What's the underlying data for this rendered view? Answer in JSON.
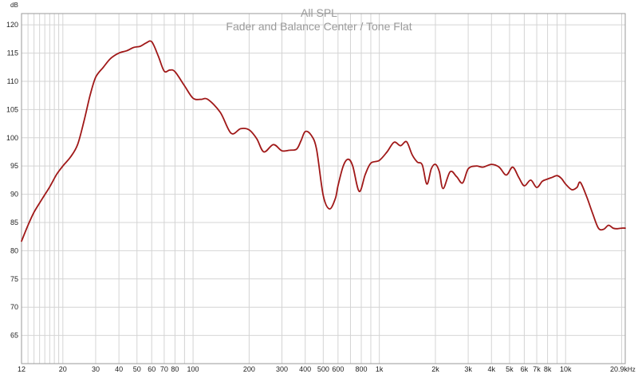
{
  "chart_data": {
    "type": "line",
    "title": "All SPL",
    "subtitle": "Fader and Balance Center / Tone Flat",
    "ylabel": "dB",
    "xlabel": "",
    "x_unit": "Hz",
    "x_scale": "log",
    "xlim": [
      12,
      20900
    ],
    "ylim": [
      60,
      122
    ],
    "grid": true,
    "legend": "none",
    "line_color": "#a01818",
    "y_ticks": [
      65,
      70,
      75,
      80,
      85,
      90,
      95,
      100,
      105,
      110,
      115,
      120
    ],
    "y_tick_labels": [
      "65",
      "70",
      "75",
      "80",
      "85",
      "90",
      "95",
      "100",
      "105",
      "110",
      "115",
      "120"
    ],
    "x_ticks": [
      12,
      20,
      30,
      40,
      50,
      60,
      70,
      80,
      100,
      200,
      300,
      400,
      500,
      600,
      800,
      1000,
      2000,
      3000,
      4000,
      5000,
      6000,
      7000,
      8000,
      10000,
      20900
    ],
    "x_tick_labels": [
      "12",
      "20",
      "30",
      "40",
      "50",
      "60",
      "70",
      "80",
      "100",
      "200",
      "300",
      "400",
      "500",
      "600",
      "800",
      "1k",
      "2k",
      "3k",
      "4k",
      "5k",
      "6k",
      "7k",
      "8k",
      "10k",
      "20.9k"
    ],
    "x_minor_gridlines": [
      12,
      13,
      14,
      15,
      16,
      17,
      18,
      19,
      20,
      30,
      40,
      50,
      60,
      70,
      80,
      90,
      100,
      200,
      300,
      400,
      500,
      600,
      700,
      800,
      900,
      1000,
      2000,
      3000,
      4000,
      5000,
      6000,
      7000,
      8000,
      9000,
      10000,
      20000
    ],
    "series": [
      {
        "x": [
          12,
          13,
          14,
          15.5,
          17,
          18.5,
          20,
          22,
          24,
          26,
          28,
          30,
          33,
          36,
          40,
          44,
          48,
          52,
          56,
          60,
          65,
          70,
          75,
          80,
          90,
          100,
          110,
          120,
          140,
          160,
          180,
          200,
          220,
          240,
          270,
          300,
          330,
          360,
          380,
          400,
          430,
          460,
          500,
          540,
          580,
          600,
          640,
          680,
          720,
          780,
          840,
          900,
          1000,
          1100,
          1200,
          1300,
          1400,
          1500,
          1600,
          1700,
          1800,
          1900,
          2000,
          2100,
          2200,
          2400,
          2600,
          2800,
          3000,
          3300,
          3600,
          4000,
          4400,
          4800,
          5200,
          5600,
          6000,
          6500,
          7000,
          7500,
          8000,
          8500,
          9000,
          9500,
          10000,
          10800,
          11500,
          12000,
          13000,
          14000,
          15000,
          16000,
          17000,
          18000,
          19000,
          20000,
          20900
        ],
        "y": [
          81.7,
          84.5,
          86.8,
          89.2,
          91.3,
          93.5,
          95.0,
          96.6,
          98.8,
          103.0,
          107.5,
          110.7,
          112.5,
          114.0,
          115.0,
          115.4,
          116.0,
          116.2,
          116.8,
          117.0,
          114.5,
          111.8,
          112.0,
          111.7,
          109.2,
          107.0,
          106.8,
          106.8,
          104.5,
          100.8,
          101.6,
          101.4,
          99.8,
          97.5,
          98.8,
          97.7,
          97.8,
          98.0,
          99.5,
          101.1,
          100.5,
          98.0,
          89.8,
          87.4,
          89.2,
          91.5,
          95.0,
          96.2,
          95.0,
          90.5,
          93.5,
          95.5,
          96.0,
          97.5,
          99.2,
          98.6,
          99.3,
          97.0,
          95.7,
          95.2,
          91.8,
          94.5,
          95.3,
          94.0,
          91.0,
          94.0,
          93.1,
          92.0,
          94.5,
          95.0,
          94.8,
          95.3,
          94.8,
          93.4,
          94.8,
          93.0,
          91.5,
          92.5,
          91.2,
          92.3,
          92.7,
          93.0,
          93.3,
          92.8,
          91.8,
          90.8,
          91.2,
          92.1,
          89.5,
          86.5,
          84.0,
          83.8,
          84.5,
          84.0,
          83.9,
          84.0,
          84.0
        ]
      }
    ]
  }
}
